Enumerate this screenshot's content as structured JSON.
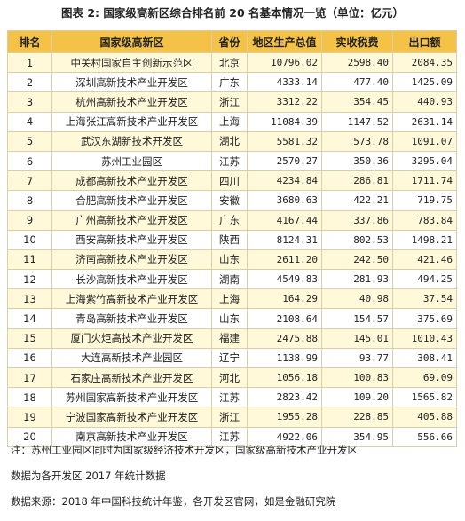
{
  "title": "图表 2: 国家级高新区综合排名前 20 名基本情况一览（单位：亿元）",
  "headers": [
    "排名",
    "国家级高新区",
    "省份",
    "地区生产总值",
    "实收税费",
    "出口额"
  ],
  "rows": [
    {
      "rank": "1",
      "zone": "中关村国家自主创新示范区",
      "province": "北京",
      "gdp": "10796.02",
      "tax": "2598.40",
      "export": "2084.35"
    },
    {
      "rank": "2",
      "zone": "深圳高新技术产业开发区",
      "province": "广东",
      "gdp": "4333.14",
      "tax": "477.40",
      "export": "1425.09"
    },
    {
      "rank": "3",
      "zone": "杭州高新技术产业开发区",
      "province": "浙江",
      "gdp": "3312.22",
      "tax": "354.45",
      "export": "440.93"
    },
    {
      "rank": "4",
      "zone": "上海张江高新技术产业开发区",
      "province": "上海",
      "gdp": "11084.39",
      "tax": "1147.52",
      "export": "2631.14"
    },
    {
      "rank": "5",
      "zone": "武汉东湖新技术开发区",
      "province": "湖北",
      "gdp": "5581.32",
      "tax": "573.78",
      "export": "1091.07"
    },
    {
      "rank": "6",
      "zone": "苏州工业园区",
      "province": "江苏",
      "gdp": "2570.27",
      "tax": "350.36",
      "export": "3295.04"
    },
    {
      "rank": "7",
      "zone": "成都高新技术产业开发区",
      "province": "四川",
      "gdp": "4234.84",
      "tax": "286.81",
      "export": "1711.74"
    },
    {
      "rank": "8",
      "zone": "合肥高新技术产业开发区",
      "province": "安徽",
      "gdp": "3680.63",
      "tax": "422.21",
      "export": "719.75"
    },
    {
      "rank": "9",
      "zone": "广州高新技术产业开发区",
      "province": "广东",
      "gdp": "4167.44",
      "tax": "337.86",
      "export": "783.84"
    },
    {
      "rank": "10",
      "zone": "西安高新技术产业开发区",
      "province": "陕西",
      "gdp": "8124.31",
      "tax": "802.53",
      "export": "1498.21"
    },
    {
      "rank": "11",
      "zone": "济南高新技术产业开发区",
      "province": "山东",
      "gdp": "2611.20",
      "tax": "242.50",
      "export": "421.46"
    },
    {
      "rank": "12",
      "zone": "长沙高新技术产业开发区",
      "province": "湖南",
      "gdp": "4549.83",
      "tax": "281.93",
      "export": "494.25"
    },
    {
      "rank": "13",
      "zone": "上海紫竹高新技术产业开发区",
      "province": "上海",
      "gdp": "164.29",
      "tax": "40.98",
      "export": "37.54"
    },
    {
      "rank": "14",
      "zone": "青岛高新技术产业开发区",
      "province": "山东",
      "gdp": "2108.64",
      "tax": "154.57",
      "export": "375.69"
    },
    {
      "rank": "15",
      "zone": "厦门火炬高技术产业开发区",
      "province": "福建",
      "gdp": "2475.88",
      "tax": "145.01",
      "export": "1010.43"
    },
    {
      "rank": "16",
      "zone": "大连高新技术产业园区",
      "province": "辽宁",
      "gdp": "1138.99",
      "tax": "93.77",
      "export": "308.41"
    },
    {
      "rank": "17",
      "zone": "石家庄高新技术产业开发区",
      "province": "河北",
      "gdp": "1056.18",
      "tax": "100.83",
      "export": "69.09"
    },
    {
      "rank": "18",
      "zone": "苏州国家高新技术产业开发区",
      "province": "江苏",
      "gdp": "2823.42",
      "tax": "109.20",
      "export": "1565.82"
    },
    {
      "rank": "19",
      "zone": "宁波国家高新技术产业开发区",
      "province": "浙江",
      "gdp": "1955.28",
      "tax": "228.85",
      "export": "405.88"
    },
    {
      "rank": "20",
      "zone": "南京高新技术产业开发区",
      "province": "江苏",
      "gdp": "4922.06",
      "tax": "354.95",
      "export": "556.66"
    }
  ],
  "notes": [
    "注：苏州工业园区同时为国家级经济技术开发区，国家级高新技术产业开发区",
    "数据为各开发区 2017 年统计数据",
    "数据来源：2018 年中国科技统计年鉴，各开发区官网，如是金融研究院"
  ],
  "colors": {
    "header_bg": "#f4c246",
    "stripe": "#fff9d9",
    "border": "#d8cfa8"
  }
}
